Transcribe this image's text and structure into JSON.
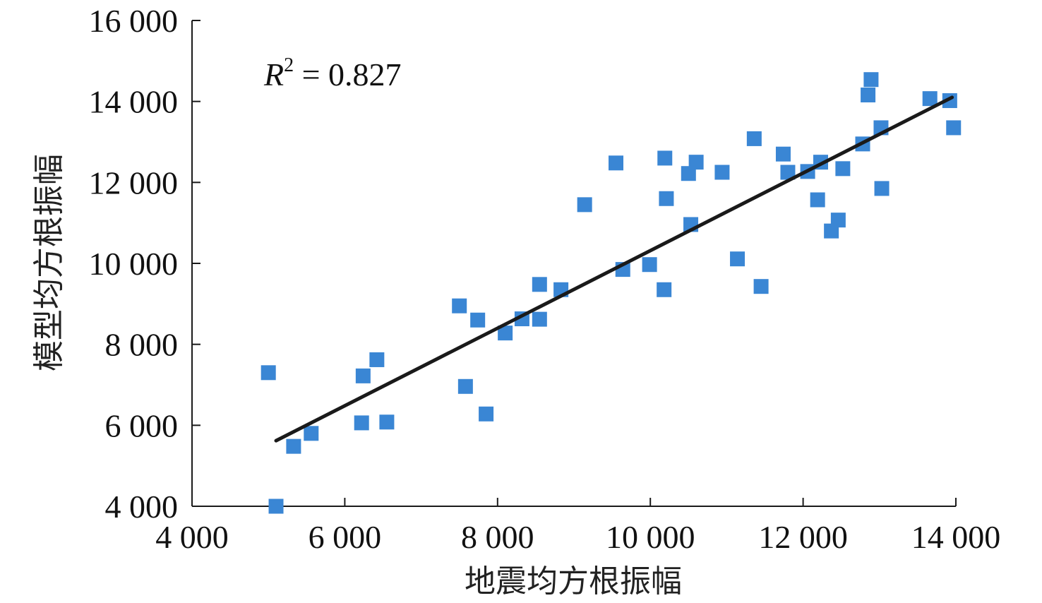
{
  "chart_data": {
    "type": "scatter",
    "xlabel": "地震均方根振幅",
    "ylabel": "模型均方根振幅",
    "xlim": [
      4000,
      14000
    ],
    "ylim": [
      4000,
      16000
    ],
    "xticks": [
      4000,
      6000,
      8000,
      10000,
      12000,
      14000
    ],
    "yticks": [
      4000,
      6000,
      8000,
      10000,
      12000,
      14000,
      16000
    ],
    "xtick_labels": [
      "4 000",
      "6 000",
      "8 000",
      "10 000",
      "12 000",
      "14 000"
    ],
    "ytick_labels": [
      "4 000",
      "6 000",
      "8 000",
      "10 000",
      "12 000",
      "14 000",
      "16 000"
    ],
    "grid": false,
    "marker_color": "#3a86d4",
    "trendline_color": "#1a1a1a",
    "annotation": {
      "var": "R",
      "sup": "2",
      "rest": " = 0.827"
    },
    "trendline": {
      "x": [
        5100,
        13950
      ],
      "y": [
        5620,
        14100
      ]
    },
    "points": [
      [
        5000,
        7300
      ],
      [
        5100,
        4000
      ],
      [
        5330,
        5480
      ],
      [
        5560,
        5800
      ],
      [
        6220,
        6060
      ],
      [
        6240,
        7220
      ],
      [
        6420,
        7620
      ],
      [
        6550,
        6080
      ],
      [
        7500,
        8950
      ],
      [
        7580,
        6960
      ],
      [
        7740,
        8600
      ],
      [
        7850,
        6280
      ],
      [
        8100,
        8280
      ],
      [
        8320,
        8630
      ],
      [
        8550,
        8620
      ],
      [
        8550,
        9480
      ],
      [
        8830,
        9350
      ],
      [
        9140,
        11450
      ],
      [
        9550,
        12480
      ],
      [
        9640,
        9850
      ],
      [
        9990,
        9970
      ],
      [
        10180,
        9350
      ],
      [
        10190,
        12600
      ],
      [
        10210,
        11600
      ],
      [
        10500,
        12220
      ],
      [
        10530,
        10960
      ],
      [
        10600,
        12500
      ],
      [
        10940,
        12250
      ],
      [
        11140,
        10110
      ],
      [
        11360,
        13080
      ],
      [
        11450,
        9430
      ],
      [
        11740,
        12700
      ],
      [
        11800,
        12250
      ],
      [
        12060,
        12270
      ],
      [
        12190,
        11570
      ],
      [
        12230,
        12500
      ],
      [
        12370,
        10800
      ],
      [
        12460,
        11070
      ],
      [
        12520,
        12340
      ],
      [
        12780,
        12950
      ],
      [
        12850,
        14160
      ],
      [
        12890,
        14540
      ],
      [
        13020,
        13350
      ],
      [
        13030,
        11850
      ],
      [
        13660,
        14070
      ],
      [
        13920,
        14020
      ],
      [
        13970,
        13350
      ]
    ]
  }
}
